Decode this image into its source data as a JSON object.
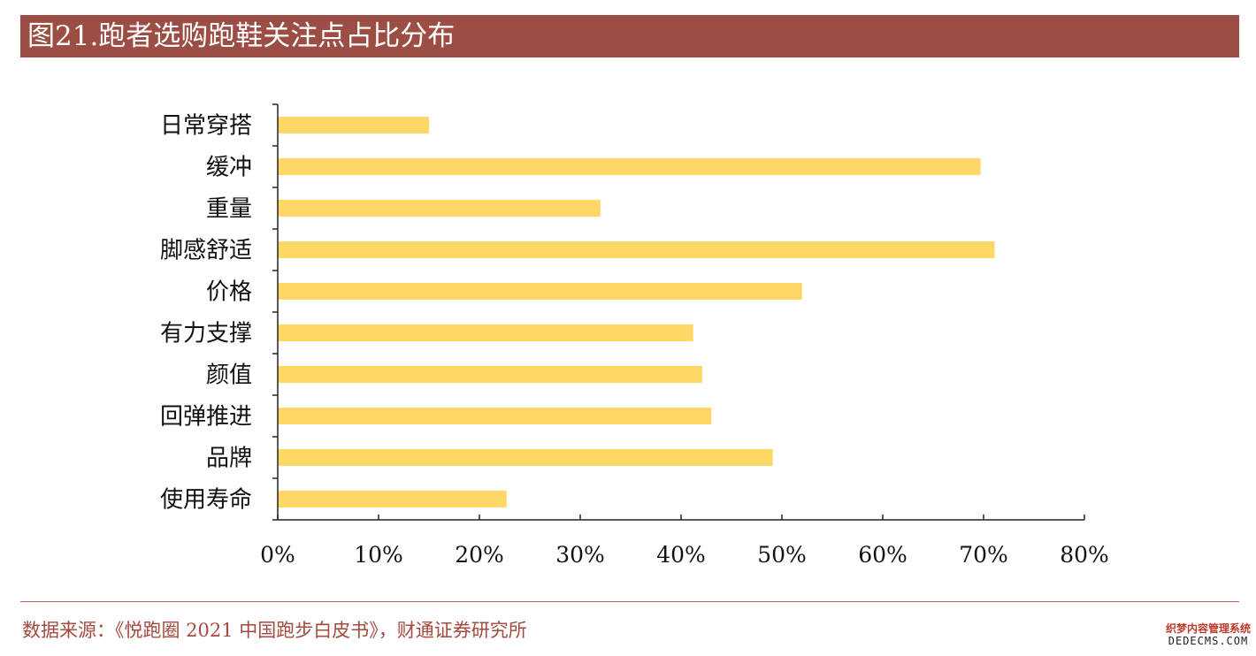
{
  "title": "图21.跑者选购跑鞋关注点占比分布",
  "source": "数据来源：《悦跑圈 2021 中国跑步白皮书》，财通证券研究所",
  "watermark": {
    "line1": "织梦内容管理系统",
    "line2": "DEDECMS.COM"
  },
  "colors": {
    "title_bg": "#9c4d44",
    "bar": "#fed766",
    "source_text": "#a44a3f"
  },
  "chart_data": {
    "type": "bar",
    "orientation": "horizontal",
    "categories": [
      "日常穿搭",
      "缓冲",
      "重量",
      "脚感舒适",
      "价格",
      "有力支撑",
      "颜值",
      "回弹推进",
      "品牌",
      "使用寿命"
    ],
    "values": [
      15,
      69.7,
      32,
      71.1,
      52,
      41.2,
      42.1,
      43,
      49.1,
      22.7
    ],
    "xlim": [
      0,
      80
    ],
    "xticks": [
      0,
      10,
      20,
      30,
      40,
      50,
      60,
      70,
      80
    ],
    "xtick_labels": [
      "0%",
      "10%",
      "20%",
      "30%",
      "40%",
      "50%",
      "60%",
      "70%",
      "80%"
    ],
    "unit": "%",
    "grid": false,
    "legend": "none",
    "xlabel": "",
    "ylabel": ""
  }
}
